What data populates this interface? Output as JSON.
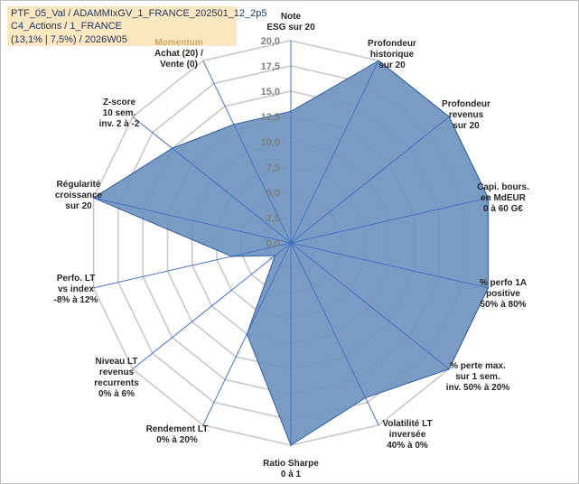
{
  "header": {
    "line1": "PTF_05_Val / ADAMMIxGV_1_FRANCE_202501_12_2p5",
    "line2": "C4_Actions / 1_FRANCE",
    "line3": "(13,1% | 7,5%) / 2026W05"
  },
  "colors": {
    "fill": "#7094c0",
    "stroke": "#2e5c9e",
    "grid": "#c8c8c8",
    "spoke": "#4472c4",
    "header_bg": "#fbe8c0",
    "header_text": "#1f3864"
  },
  "chart_data": {
    "type": "radar",
    "title": "",
    "rmin": 0,
    "rmax": 20,
    "ticks": [
      0,
      2.5,
      5,
      7.5,
      10,
      12.5,
      15,
      17.5,
      20
    ],
    "tick_labels": [
      "0,0",
      "2,5",
      "5,0",
      "7,5",
      "10,0",
      "12,5",
      "15,0",
      "17,5",
      "20,0"
    ],
    "categories": [
      [
        "Note",
        "ESG sur 20"
      ],
      [
        "Profondeur",
        "historique",
        "sur 20"
      ],
      [
        "Profondeur",
        "revenus",
        "sur 20"
      ],
      [
        "Capi. bours.",
        "en MdEUR",
        "0 à 60 G€"
      ],
      [
        "% perfo 1A",
        "positive",
        "50% à 80%"
      ],
      [
        "% perte max.",
        "sur 1 sem.",
        "inv. 50% à 20%"
      ],
      [
        "Volatilité LT",
        "inversée",
        "40% à 0%"
      ],
      [
        "Ratio Sharpe",
        "0 à 1"
      ],
      [
        "Rendement LT",
        "0% à 20%"
      ],
      [
        "Niveau LT",
        "revenus",
        "recurrents",
        "0% à 6%"
      ],
      [
        "Perfo. LT",
        "vs index",
        "-8% à 12%"
      ],
      [
        "Régularité",
        "croissance",
        "sur 20"
      ],
      [
        "Z-score",
        "10 sem.",
        "inv. 2 à -2"
      ],
      [
        "Momentum",
        "Achat (20) /",
        "Vente (0)"
      ]
    ],
    "series": [
      {
        "name": "PTF_05_Val",
        "values": [
          13,
          20,
          20,
          20,
          20,
          20,
          17,
          20,
          10,
          2,
          6,
          20,
          15,
          13
        ]
      }
    ]
  }
}
